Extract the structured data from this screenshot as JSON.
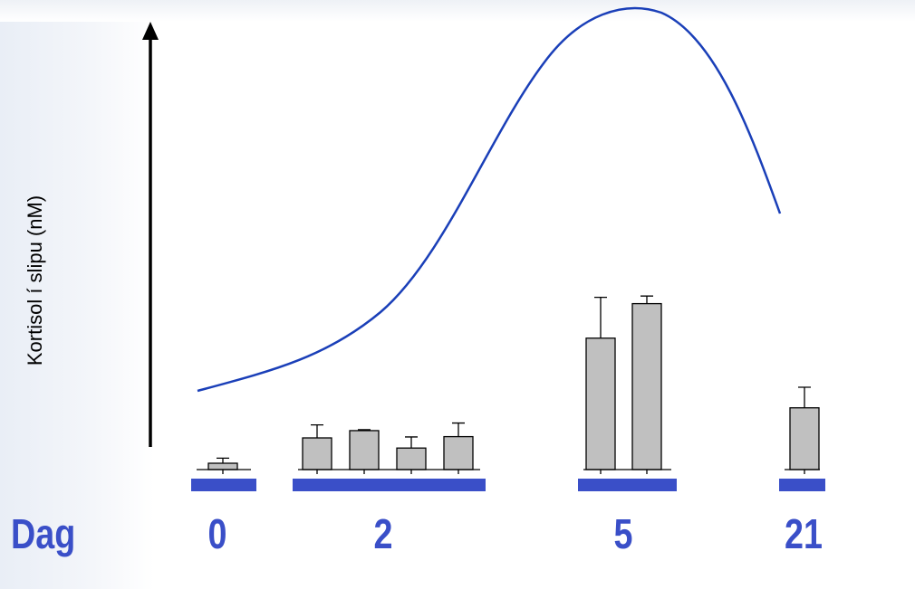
{
  "chart_data": {
    "type": "bar",
    "ylabel": "Kortisol í slipu (nM)",
    "day_axis_label": "Dag",
    "groups": [
      {
        "day": "0",
        "bars": [
          {
            "value": 2.0,
            "error": 1.6
          }
        ]
      },
      {
        "day": "2",
        "bars": [
          {
            "value": 10.0,
            "error": 4.1
          },
          {
            "value": 12.3,
            "error": 0.3
          },
          {
            "value": 6.8,
            "error": 3.5
          },
          {
            "value": 10.4,
            "error": 4.3
          }
        ]
      },
      {
        "day": "5",
        "bars": [
          {
            "value": 41.5,
            "error": 12.9
          },
          {
            "value": 52.4,
            "error": 2.4
          }
        ]
      },
      {
        "day": "21",
        "bars": [
          {
            "value": 19.5,
            "error": 6.5
          }
        ]
      }
    ],
    "axis_break": true,
    "trend_line": {
      "color": "#1a3fb8"
    },
    "bar_color": "#c0c0c0",
    "day_color": "#3a4fc8"
  }
}
